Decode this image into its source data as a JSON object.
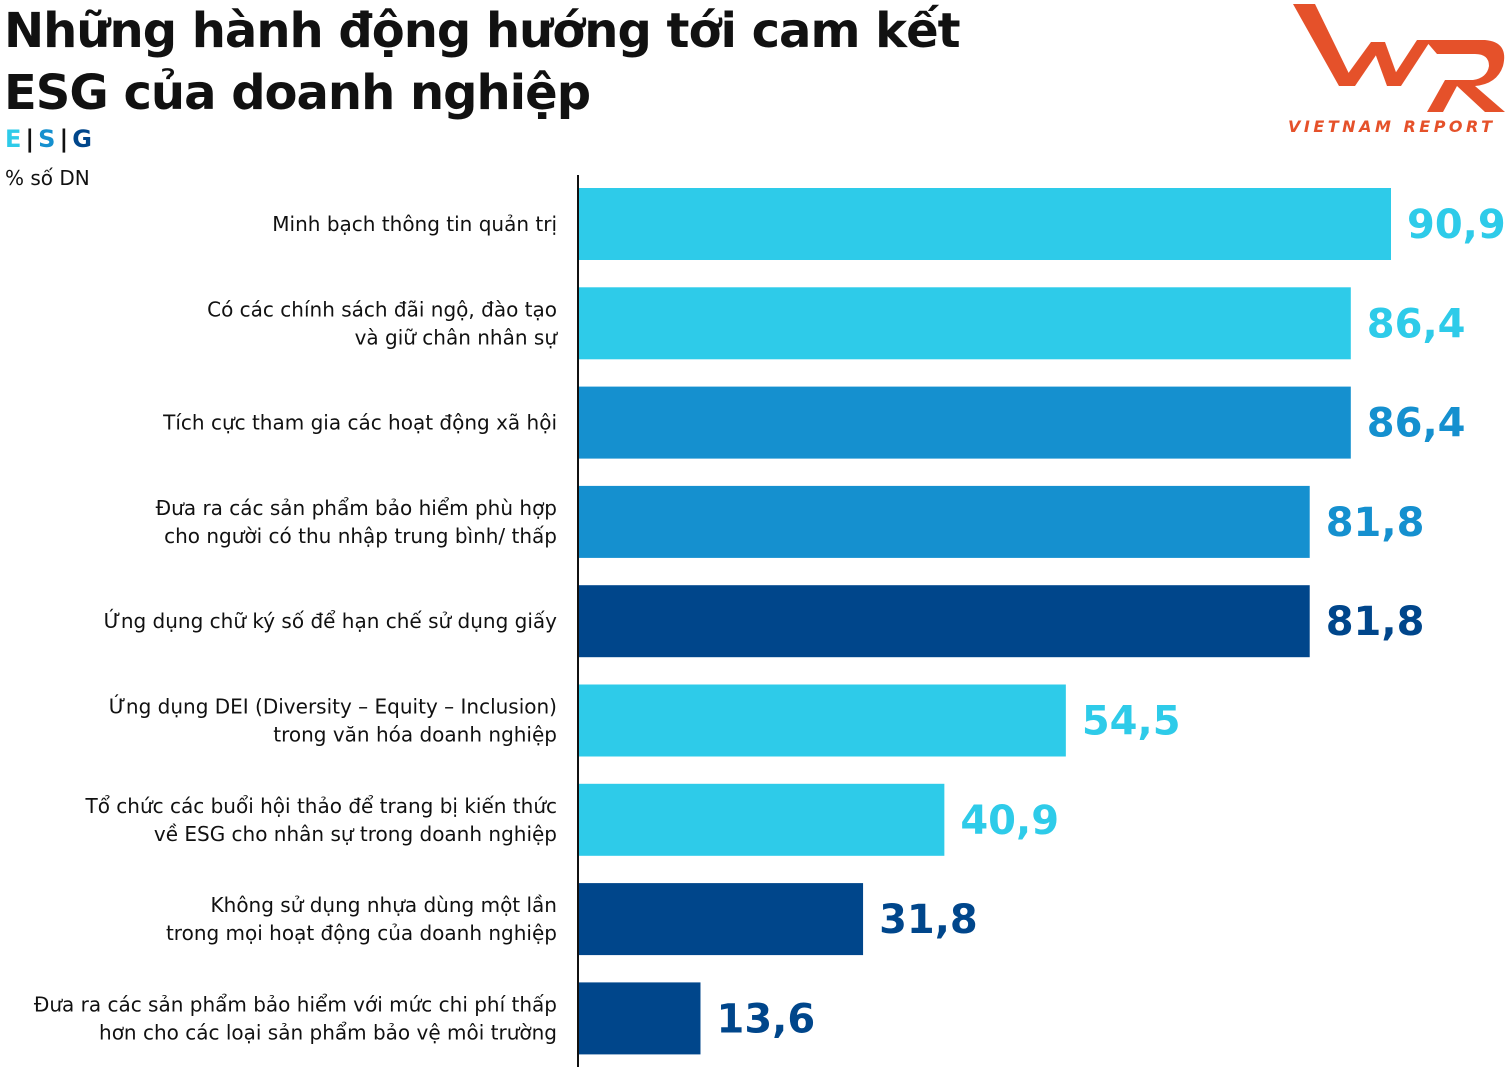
{
  "chart_data": {
    "type": "bar",
    "orientation": "horizontal",
    "title": "Những hành động hướng tới cam kết ESG của doanh nghiệp",
    "ylabel": "% số DN",
    "legend": [
      {
        "label": "E",
        "color": "#2ecbe9"
      },
      {
        "label": "S",
        "color": "#1590cf"
      },
      {
        "label": "G",
        "color": "#00468b"
      }
    ],
    "legend_placement": "top-left",
    "grid": false,
    "xlim": [
      0,
      100
    ],
    "categories": [
      [
        "Minh bạch thông tin quản trị"
      ],
      [
        "Có các chính sách đãi ngộ, đào tạo",
        "và giữ chân nhân sự"
      ],
      [
        "Tích cực tham gia các hoạt động xã hội"
      ],
      [
        "Đưa ra các sản phẩm bảo hiểm phù hợp",
        "cho người có thu nhập trung bình/ thấp"
      ],
      [
        "Ứng dụng chữ ký số để hạn chế sử dụng giấy"
      ],
      [
        "Ứng dụng DEI (Diversity – Equity – Inclusion)",
        "trong văn hóa doanh nghiệp"
      ],
      [
        "Tổ chức các buổi hội thảo để trang bị kiến thức",
        "về ESG cho nhân sự trong doanh nghiệp"
      ],
      [
        "Không sử dụng nhựa dùng một lần",
        "trong mọi hoạt động của doanh nghiệp"
      ],
      [
        "Đưa ra các sản phẩm bảo hiểm với mức chi phí thấp",
        "hơn cho các loại sản phẩm bảo vệ môi trường"
      ]
    ],
    "values": [
      90.9,
      86.4,
      86.4,
      81.8,
      81.8,
      54.5,
      40.9,
      31.8,
      13.6
    ],
    "value_labels": [
      "90,9",
      "86,4",
      "86,4",
      "81,8",
      "81,8",
      "54,5",
      "40,9",
      "31,8",
      "13,6"
    ],
    "groups": [
      "E",
      "E",
      "S",
      "S",
      "G",
      "E",
      "E",
      "G",
      "G"
    ]
  },
  "brand": {
    "logo_text": "VNR",
    "tagline": "VIETNAM REPORT",
    "color": "#e5512a"
  }
}
